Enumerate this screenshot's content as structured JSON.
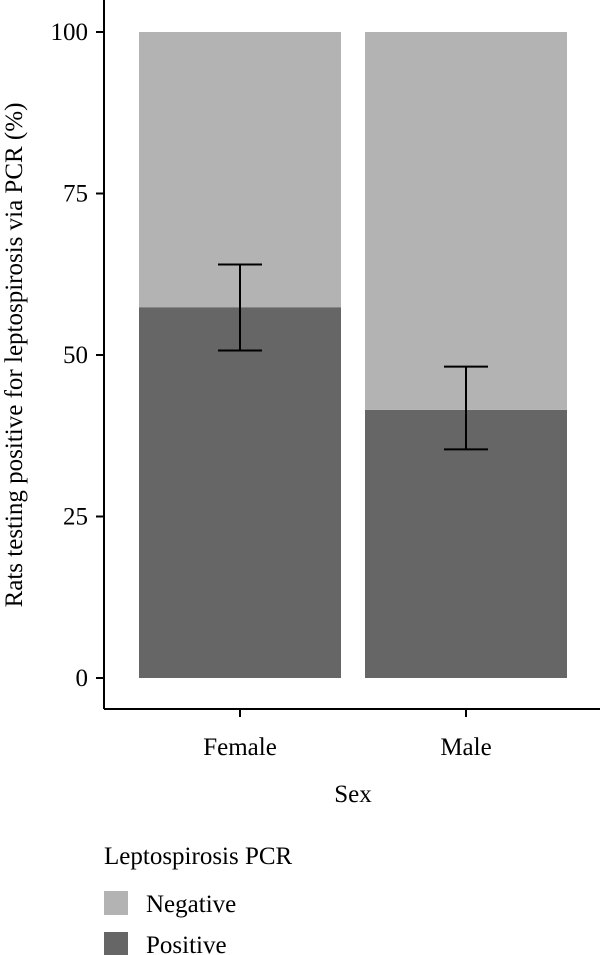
{
  "chart_data": {
    "type": "bar",
    "stacked": true,
    "percent": true,
    "categories": [
      "Female",
      "Male"
    ],
    "series": [
      {
        "name": "Positive",
        "values": [
          57.4,
          41.5
        ],
        "color": "#666666"
      },
      {
        "name": "Negative",
        "values": [
          42.6,
          58.5
        ],
        "color": "#b3b3b3"
      }
    ],
    "error_bars": [
      {
        "category": "Female",
        "low": 50.7,
        "high": 64.0
      },
      {
        "category": "Male",
        "low": 35.4,
        "high": 48.2
      }
    ],
    "title": "",
    "xlabel": "Sex",
    "ylabel": "Rats testing positive for leptospirosis via PCR (%)",
    "ylim": [
      0,
      100
    ],
    "yticks": [
      "0",
      "25",
      "50",
      "75",
      "100"
    ],
    "grid": false,
    "legend": {
      "title": "Leptospirosis PCR",
      "position": "bottom",
      "items": [
        {
          "label": "Negative",
          "color": "#b3b3b3"
        },
        {
          "label": "Positive",
          "color": "#666666"
        }
      ]
    }
  }
}
